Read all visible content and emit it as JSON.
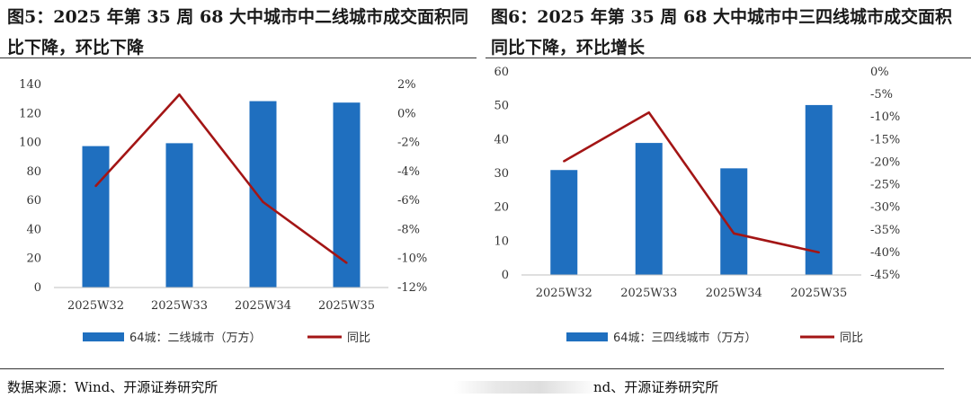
{
  "titles": {
    "left": "图5：2025 年第 35 周 68 大中城市中二线城市成交面积同比下降，环比下降",
    "right": "图6：2025 年第 35 周 68 大中城市中三四线城市成交面积同比下降，环比增长"
  },
  "source": {
    "left": "数据来源：Wind、开源证券研究所",
    "right": "nd、开源证券研究所"
  },
  "colors": {
    "bar": "#1f6fbf",
    "line": "#a31515",
    "axis": "#bfbfbf"
  },
  "chart_data": [
    {
      "type": "bar",
      "categories": [
        "2025W32",
        "2025W33",
        "2025W34",
        "2025W35"
      ],
      "series": [
        {
          "name": "64城：二线城市（万方）",
          "axis": "left",
          "values": [
            97.5,
            99.5,
            128.5,
            127.5
          ]
        },
        {
          "name": "同比",
          "axis": "right",
          "kind": "line",
          "values": [
            -5.0,
            1.3,
            -6.1,
            -10.3
          ]
        }
      ],
      "ylim": [
        0,
        140
      ],
      "yticks": [
        0,
        20,
        40,
        60,
        80,
        100,
        120,
        140
      ],
      "y2lim": [
        -12,
        2
      ],
      "y2ticks": [
        2,
        0,
        -2,
        -4,
        -6,
        -8,
        -10,
        -12
      ],
      "y2_unit": "%",
      "legend": "bottom"
    },
    {
      "type": "bar",
      "categories": [
        "2025W32",
        "2025W33",
        "2025W34",
        "2025W35"
      ],
      "series": [
        {
          "name": "64城：三四线城市（万方）",
          "axis": "left",
          "values": [
            31,
            39,
            31.5,
            50.2
          ]
        },
        {
          "name": "同比",
          "axis": "right",
          "kind": "line",
          "values": [
            -19.8,
            -9.0,
            -35.8,
            -40.0
          ]
        }
      ],
      "ylim": [
        0,
        60
      ],
      "yticks": [
        0,
        10,
        20,
        30,
        40,
        50,
        60
      ],
      "y2lim": [
        -45,
        0
      ],
      "y2ticks": [
        0,
        -5,
        -10,
        -15,
        -20,
        -25,
        -30,
        -35,
        -40,
        -45
      ],
      "y2_unit": "%",
      "legend": "bottom"
    }
  ]
}
